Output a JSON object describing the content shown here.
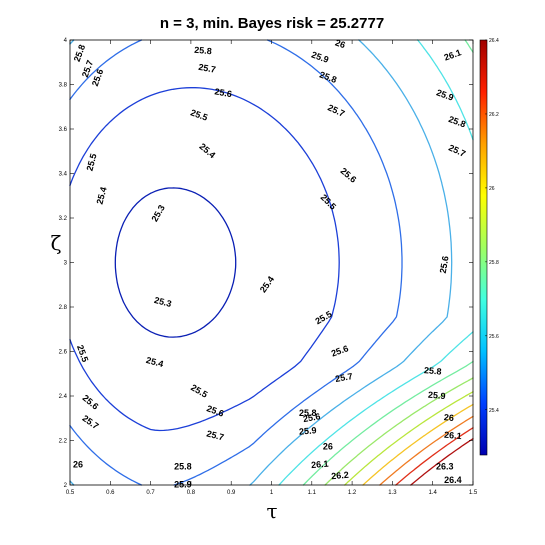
{
  "chart_data": {
    "type": "contour",
    "title": "n = 3, min. Bayes risk = 25.2777",
    "xlabel": "τ",
    "ylabel": "ζ",
    "xlim": [
      0.5,
      1.5
    ],
    "ylim": [
      2,
      4
    ],
    "x_ticks": [
      "0.5",
      "0.6",
      "0.7",
      "0.8",
      "0.9",
      "1",
      "1.1",
      "1.2",
      "1.3",
      "1.4",
      "1.5"
    ],
    "y_ticks": [
      "2",
      "2.2",
      "2.4",
      "2.6",
      "2.8",
      "3",
      "3.2",
      "3.4",
      "3.6",
      "3.8",
      "4"
    ],
    "minimum": {
      "tau": 0.72,
      "zeta": 3.0,
      "risk": 25.2777
    },
    "levels": [
      25.3,
      25.4,
      25.5,
      25.6,
      25.7,
      25.8,
      25.9,
      26.0,
      26.1,
      26.2,
      26.3,
      26.4
    ],
    "level_colors": {
      "25.3": "#0a1fb4",
      "25.4": "#1c3fd8",
      "25.5": "#2f6ee8",
      "25.6": "#4ab0e8",
      "25.7": "#4fe3e6",
      "25.8": "#74eca0",
      "25.9": "#9ae86a",
      "26.0": "#b9e63c",
      "26.1": "#f5c426",
      "26.2": "#f07b22",
      "26.3": "#e0301a",
      "26.4": "#b01010"
    },
    "contour_labels": [
      {
        "text": "25.3",
        "tau": 0.72,
        "zeta": 3.22,
        "angle": -60
      },
      {
        "text": "25.3",
        "tau": 0.73,
        "zeta": 2.82,
        "angle": 15
      },
      {
        "text": "25.4",
        "tau": 0.58,
        "zeta": 3.3,
        "angle": -75
      },
      {
        "text": "25.4",
        "tau": 0.84,
        "zeta": 3.5,
        "angle": 40
      },
      {
        "text": "25.4",
        "tau": 0.71,
        "zeta": 2.55,
        "angle": 15
      },
      {
        "text": "25.4",
        "tau": 0.99,
        "zeta": 2.9,
        "angle": -55
      },
      {
        "text": "25.5",
        "tau": 0.555,
        "zeta": 3.45,
        "angle": -75
      },
      {
        "text": "25.5",
        "tau": 0.82,
        "zeta": 3.66,
        "angle": 20
      },
      {
        "text": "25.5",
        "tau": 1.14,
        "zeta": 3.27,
        "angle": 45
      },
      {
        "text": "25.5",
        "tau": 1.13,
        "zeta": 2.75,
        "angle": -30
      },
      {
        "text": "25.5",
        "tau": 0.53,
        "zeta": 2.59,
        "angle": 70
      },
      {
        "text": "25.5",
        "tau": 0.82,
        "zeta": 2.42,
        "angle": 30
      },
      {
        "text": "25.6",
        "tau": 0.57,
        "zeta": 3.83,
        "angle": -70
      },
      {
        "text": "25.6",
        "tau": 0.88,
        "zeta": 3.76,
        "angle": 10
      },
      {
        "text": "25.6",
        "tau": 1.19,
        "zeta": 3.39,
        "angle": 40
      },
      {
        "text": "25.6",
        "tau": 1.43,
        "zeta": 2.99,
        "angle": -80
      },
      {
        "text": "25.6",
        "tau": 1.17,
        "zeta": 2.6,
        "angle": -20
      },
      {
        "text": "25.6",
        "tau": 0.55,
        "zeta": 2.37,
        "angle": 40
      },
      {
        "text": "25.6",
        "tau": 0.86,
        "zeta": 2.33,
        "angle": 20
      },
      {
        "text": "25.6",
        "tau": 1.1,
        "zeta": 2.3,
        "angle": -10
      },
      {
        "text": "25.7",
        "tau": 0.545,
        "zeta": 3.87,
        "angle": -70
      },
      {
        "text": "25.7",
        "tau": 0.84,
        "zeta": 3.87,
        "angle": 10
      },
      {
        "text": "25.7",
        "tau": 1.16,
        "zeta": 3.68,
        "angle": 25
      },
      {
        "text": "25.7",
        "tau": 1.46,
        "zeta": 3.5,
        "angle": 25
      },
      {
        "text": "25.7",
        "tau": 1.18,
        "zeta": 2.48,
        "angle": -10
      },
      {
        "text": "25.7",
        "tau": 0.55,
        "zeta": 2.28,
        "angle": 35
      },
      {
        "text": "25.7",
        "tau": 0.86,
        "zeta": 2.22,
        "angle": 15
      },
      {
        "text": "25.8",
        "tau": 0.525,
        "zeta": 3.94,
        "angle": -70
      },
      {
        "text": "25.8",
        "tau": 0.83,
        "zeta": 3.95,
        "angle": 5
      },
      {
        "text": "25.8",
        "tau": 1.14,
        "zeta": 3.83,
        "angle": 20
      },
      {
        "text": "25.8",
        "tau": 1.46,
        "zeta": 3.63,
        "angle": 20
      },
      {
        "text": "25.8",
        "tau": 1.4,
        "zeta": 2.51,
        "angle": 5
      },
      {
        "text": "25.8",
        "tau": 0.78,
        "zeta": 2.08,
        "angle": 0
      },
      {
        "text": "25.8",
        "tau": 1.09,
        "zeta": 2.32,
        "angle": 0
      },
      {
        "text": "25.9",
        "tau": 1.12,
        "zeta": 3.92,
        "angle": 20
      },
      {
        "text": "25.9",
        "tau": 1.43,
        "zeta": 3.75,
        "angle": 20
      },
      {
        "text": "25.9",
        "tau": 1.41,
        "zeta": 2.4,
        "angle": 5
      },
      {
        "text": "25.9",
        "tau": 1.09,
        "zeta": 2.24,
        "angle": -5
      },
      {
        "text": "25.9",
        "tau": 0.78,
        "zeta": 2.0,
        "angle": 0
      },
      {
        "text": "26",
        "tau": 1.17,
        "zeta": 3.98,
        "angle": 20
      },
      {
        "text": "26",
        "tau": 1.44,
        "zeta": 2.3,
        "angle": 5
      },
      {
        "text": "26",
        "tau": 1.14,
        "zeta": 2.17,
        "angle": 0
      },
      {
        "text": "26",
        "tau": 0.52,
        "zeta": 2.09,
        "angle": 0
      },
      {
        "text": "26.1",
        "tau": 1.45,
        "zeta": 3.93,
        "angle": -20
      },
      {
        "text": "26.1",
        "tau": 1.45,
        "zeta": 2.22,
        "angle": 5
      },
      {
        "text": "26.1",
        "tau": 1.12,
        "zeta": 2.09,
        "angle": -5
      },
      {
        "text": "26.2",
        "tau": 1.17,
        "zeta": 2.04,
        "angle": -5
      },
      {
        "text": "26.3",
        "tau": 1.43,
        "zeta": 2.08,
        "angle": 0
      },
      {
        "text": "26.4",
        "tau": 1.45,
        "zeta": 2.02,
        "angle": 0
      }
    ],
    "colorbar": {
      "range": [
        25.2777,
        26.4
      ],
      "ticks": [
        "25.4",
        "25.6",
        "25.8",
        "26",
        "26.2",
        "26.4"
      ],
      "colors": [
        "#0000b0",
        "#0040ff",
        "#00c0ff",
        "#40ffe0",
        "#a0ff60",
        "#ffff00",
        "#ffa000",
        "#ff2000",
        "#a00000"
      ]
    },
    "grid": false,
    "legend": "none"
  }
}
